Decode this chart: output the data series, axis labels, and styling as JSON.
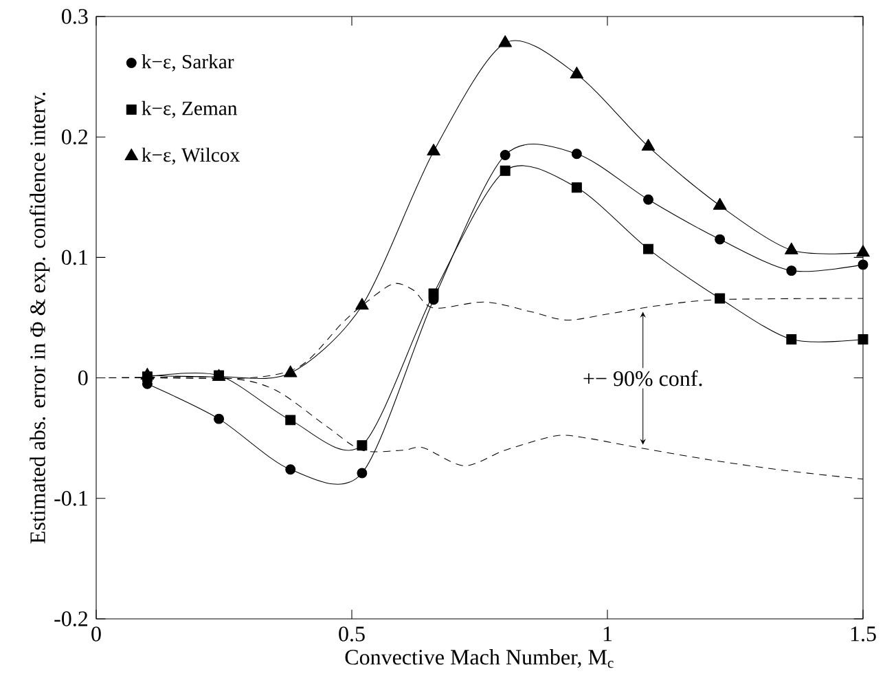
{
  "chart_data": {
    "type": "line",
    "xlabel": "Convective Mach Number, M$_{c}$",
    "ylabel": "Estimated abs. error in Φ & exp. confidence interv.",
    "x": [
      0.1,
      0.24,
      0.38,
      0.52,
      0.66,
      0.8,
      0.94,
      1.08,
      1.22,
      1.36,
      1.5
    ],
    "xlim": [
      0,
      1.5
    ],
    "xticks": [
      0,
      0.5,
      1,
      1.5
    ],
    "ylim": [
      -0.2,
      0.3
    ],
    "yticks": [
      -0.2,
      -0.1,
      0,
      0.1,
      0.2,
      0.3
    ],
    "grid": false,
    "legend": "top left",
    "series": [
      {
        "name": "k−ε, Sarkar",
        "color": "#000000",
        "marker": "circle",
        "values": [
          -0.005,
          -0.034,
          -0.076,
          -0.079,
          0.065,
          0.185,
          0.186,
          0.148,
          0.115,
          0.089,
          0.094
        ]
      },
      {
        "name": "k−ε, Zeman",
        "color": "#000000",
        "marker": "square",
        "values": [
          0.001,
          0.002,
          -0.035,
          -0.056,
          0.07,
          0.172,
          0.158,
          0.107,
          0.066,
          0.032,
          0.032
        ]
      },
      {
        "name": "k−ε, Wilcox",
        "color": "#000000",
        "marker": "triangle",
        "values": [
          0.002,
          0.001,
          0.004,
          0.06,
          0.188,
          0.278,
          0.252,
          0.192,
          0.143,
          0.106,
          0.104
        ]
      },
      {
        "color": "#000000",
        "marker": "none",
        "line_style": "dashed",
        "x": [
          0,
          0.1,
          0.3,
          0.4,
          0.48,
          0.52,
          0.58,
          0.62,
          0.66,
          0.76,
          0.85,
          0.92,
          1.0,
          1.1,
          1.22,
          1.5
        ],
        "values": [
          0,
          0,
          0,
          0.01,
          0.045,
          0.06,
          0.078,
          0.073,
          0.058,
          0.063,
          0.055,
          0.048,
          0.053,
          0.06,
          0.065,
          0.066
        ]
      },
      {
        "color": "#000000",
        "marker": "none",
        "line_style": "dashed",
        "x": [
          0,
          0.25,
          0.35,
          0.45,
          0.52,
          0.6,
          0.64,
          0.72,
          0.8,
          0.9,
          0.96,
          1.05,
          1.2,
          1.35,
          1.5
        ],
        "values": [
          0,
          0,
          -0.01,
          -0.04,
          -0.06,
          -0.06,
          -0.058,
          -0.073,
          -0.06,
          -0.048,
          -0.05,
          -0.057,
          -0.068,
          -0.077,
          -0.084
        ]
      }
    ],
    "annotations": [
      "+− 90% conf."
    ]
  }
}
